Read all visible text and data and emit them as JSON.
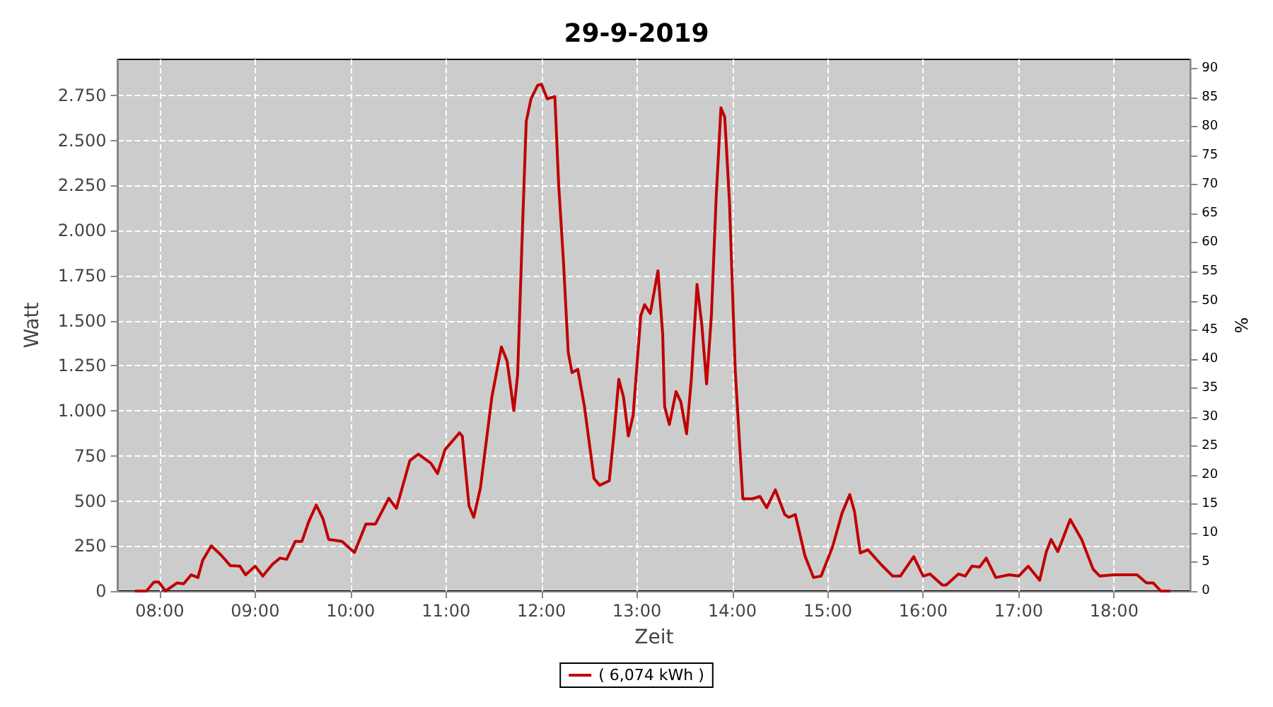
{
  "chart_data": {
    "type": "line",
    "title": "29-9-2019",
    "xlabel": "Zeit",
    "ylabel": "Watt",
    "y2label": "%",
    "xlim": [
      7.56,
      18.8
    ],
    "xticks": [
      {
        "value": 8,
        "label": "08:00"
      },
      {
        "value": 9,
        "label": "09:00"
      },
      {
        "value": 10,
        "label": "10:00"
      },
      {
        "value": 11,
        "label": "11:00"
      },
      {
        "value": 12,
        "label": "12:00"
      },
      {
        "value": 13,
        "label": "13:00"
      },
      {
        "value": 14,
        "label": "14:00"
      },
      {
        "value": 15,
        "label": "15:00"
      },
      {
        "value": 16,
        "label": "16:00"
      },
      {
        "value": 17,
        "label": "17:00"
      },
      {
        "value": 18,
        "label": "18:00"
      }
    ],
    "ylim": [
      0,
      2950
    ],
    "yticks": [
      0,
      250,
      500,
      750,
      {
        "value": 1000,
        "label": "1.000"
      },
      {
        "value": 1250,
        "label": "1.250"
      },
      {
        "value": 1500,
        "label": "1.500"
      },
      {
        "value": 1750,
        "label": "1.750"
      },
      {
        "value": 2000,
        "label": "2.000"
      },
      {
        "value": 2250,
        "label": "2.250"
      },
      {
        "value": 2500,
        "label": "2.500"
      },
      {
        "value": 2750,
        "label": "2.750"
      }
    ],
    "y2lim": [
      0,
      91.6
    ],
    "y2ticks": [
      0,
      5,
      10,
      15,
      20,
      25,
      30,
      35,
      40,
      45,
      50,
      55,
      60,
      65,
      70,
      75,
      80,
      85,
      90
    ],
    "grid": true,
    "legend": "bottom",
    "marker": "none",
    "line_style": "solid",
    "series": [
      {
        "name": "( 6,074 kWh )",
        "color": "#c00000",
        "x": [
          7.74,
          7.86,
          7.94,
          7.99,
          8.06,
          8.18,
          8.25,
          8.33,
          8.4,
          8.45,
          8.54,
          8.64,
          8.74,
          8.84,
          8.9,
          9.0,
          9.08,
          9.18,
          9.26,
          9.33,
          9.42,
          9.49,
          9.56,
          9.64,
          9.71,
          9.77,
          9.91,
          10.04,
          10.16,
          10.26,
          10.4,
          10.48,
          10.62,
          10.71,
          10.84,
          10.91,
          10.99,
          11.06,
          11.14,
          11.17,
          11.24,
          11.29,
          11.36,
          11.48,
          11.58,
          11.64,
          11.71,
          11.75,
          11.8,
          11.84,
          11.89,
          11.96,
          12.0,
          12.06,
          12.14,
          12.18,
          12.23,
          12.28,
          12.32,
          12.38,
          12.45,
          12.55,
          12.61,
          12.71,
          12.76,
          12.81,
          12.86,
          12.91,
          12.96,
          13.04,
          13.08,
          13.14,
          13.22,
          13.27,
          13.29,
          13.34,
          13.41,
          13.46,
          13.52,
          13.57,
          13.63,
          13.68,
          13.73,
          13.78,
          13.83,
          13.88,
          13.92,
          13.97,
          14.03,
          14.11,
          14.21,
          14.29,
          14.36,
          14.45,
          14.55,
          14.59,
          14.66,
          14.76,
          14.85,
          14.93,
          15.05,
          15.15,
          15.23,
          15.28,
          15.34,
          15.42,
          15.56,
          15.68,
          15.76,
          15.9,
          16.0,
          16.07,
          16.2,
          16.24,
          16.37,
          16.44,
          16.51,
          16.59,
          16.66,
          16.76,
          16.9,
          17.0,
          17.1,
          17.22,
          17.29,
          17.34,
          17.41,
          17.46,
          17.54,
          17.66,
          17.78,
          17.85,
          18.0,
          18.24,
          18.34,
          18.41,
          18.49,
          18.59
        ],
        "values": [
          0,
          0,
          50,
          50,
          0,
          45,
          40,
          90,
          75,
          171,
          251,
          201,
          141,
          138,
          90,
          138,
          83,
          148,
          183,
          176,
          276,
          276,
          384,
          477,
          402,
          286,
          276,
          214,
          372,
          372,
          515,
          459,
          723,
          760,
          710,
          652,
          785,
          828,
          878,
          860,
          474,
          409,
          572,
          1077,
          1355,
          1275,
          1001,
          1200,
          2003,
          2605,
          2731,
          2806,
          2812,
          2731,
          2744,
          2254,
          1830,
          1325,
          1212,
          1230,
          1024,
          625,
          587,
          612,
          873,
          1175,
          1075,
          860,
          974,
          1527,
          1589,
          1540,
          1777,
          1425,
          1024,
          924,
          1107,
          1050,
          873,
          1175,
          1702,
          1476,
          1149,
          1527,
          2179,
          2681,
          2630,
          2154,
          1225,
          512,
          512,
          525,
          462,
          562,
          424,
          409,
          424,
          196,
          75,
          83,
          246,
          434,
          535,
          440,
          211,
          229,
          146,
          83,
          83,
          191,
          83,
          95,
          33,
          33,
          95,
          83,
          138,
          133,
          183,
          75,
          90,
          83,
          138,
          60,
          219,
          286,
          219,
          286,
          397,
          286,
          121,
          83,
          90,
          90,
          45,
          45,
          0,
          0
        ]
      }
    ]
  }
}
